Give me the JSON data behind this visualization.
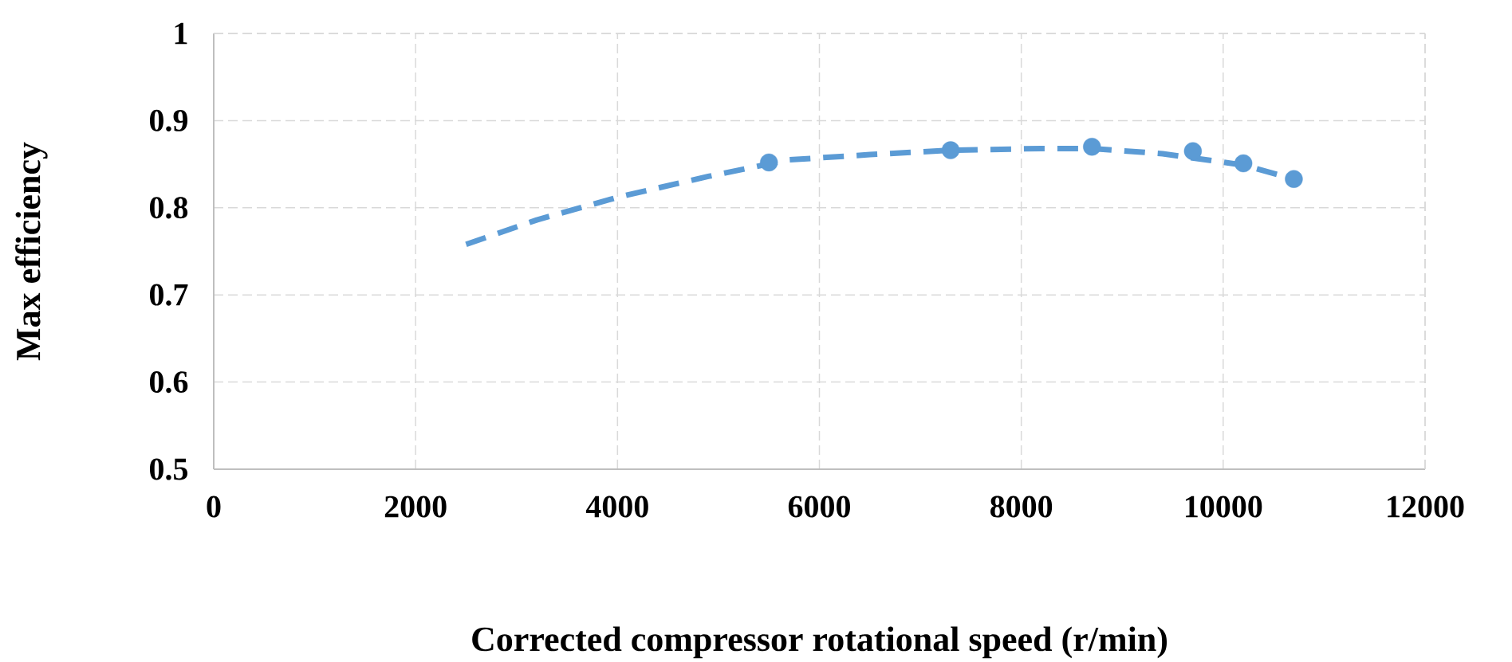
{
  "chart_data": {
    "type": "scatter",
    "xlabel": "Corrected compressor rotational speed (r/min)",
    "ylabel": "Max efficiency",
    "xlim": [
      0,
      12000
    ],
    "ylim": [
      0.5,
      1
    ],
    "xticks": [
      0,
      2000,
      4000,
      6000,
      8000,
      10000,
      12000
    ],
    "yticks": [
      0.5,
      0.6,
      0.7,
      0.8,
      0.9,
      1
    ],
    "grid": true,
    "series": [
      {
        "color": "#5b9bd5",
        "marker": "circle",
        "x": [
          5500,
          7300,
          8700,
          9700,
          10200,
          10700
        ],
        "values": [
          0.852,
          0.866,
          0.87,
          0.865,
          0.851,
          0.833
        ]
      },
      {
        "type": "line",
        "color": "#5b9bd5",
        "marker": "none",
        "line_style": "dashed",
        "x": [
          2500,
          3200,
          4000,
          4900,
          5700,
          6500,
          7300,
          8200,
          8700,
          9400,
          10200,
          10700
        ],
        "values": [
          0.758,
          0.786,
          0.812,
          0.836,
          0.855,
          0.861,
          0.866,
          0.868,
          0.868,
          0.862,
          0.849,
          0.833
        ]
      }
    ]
  }
}
